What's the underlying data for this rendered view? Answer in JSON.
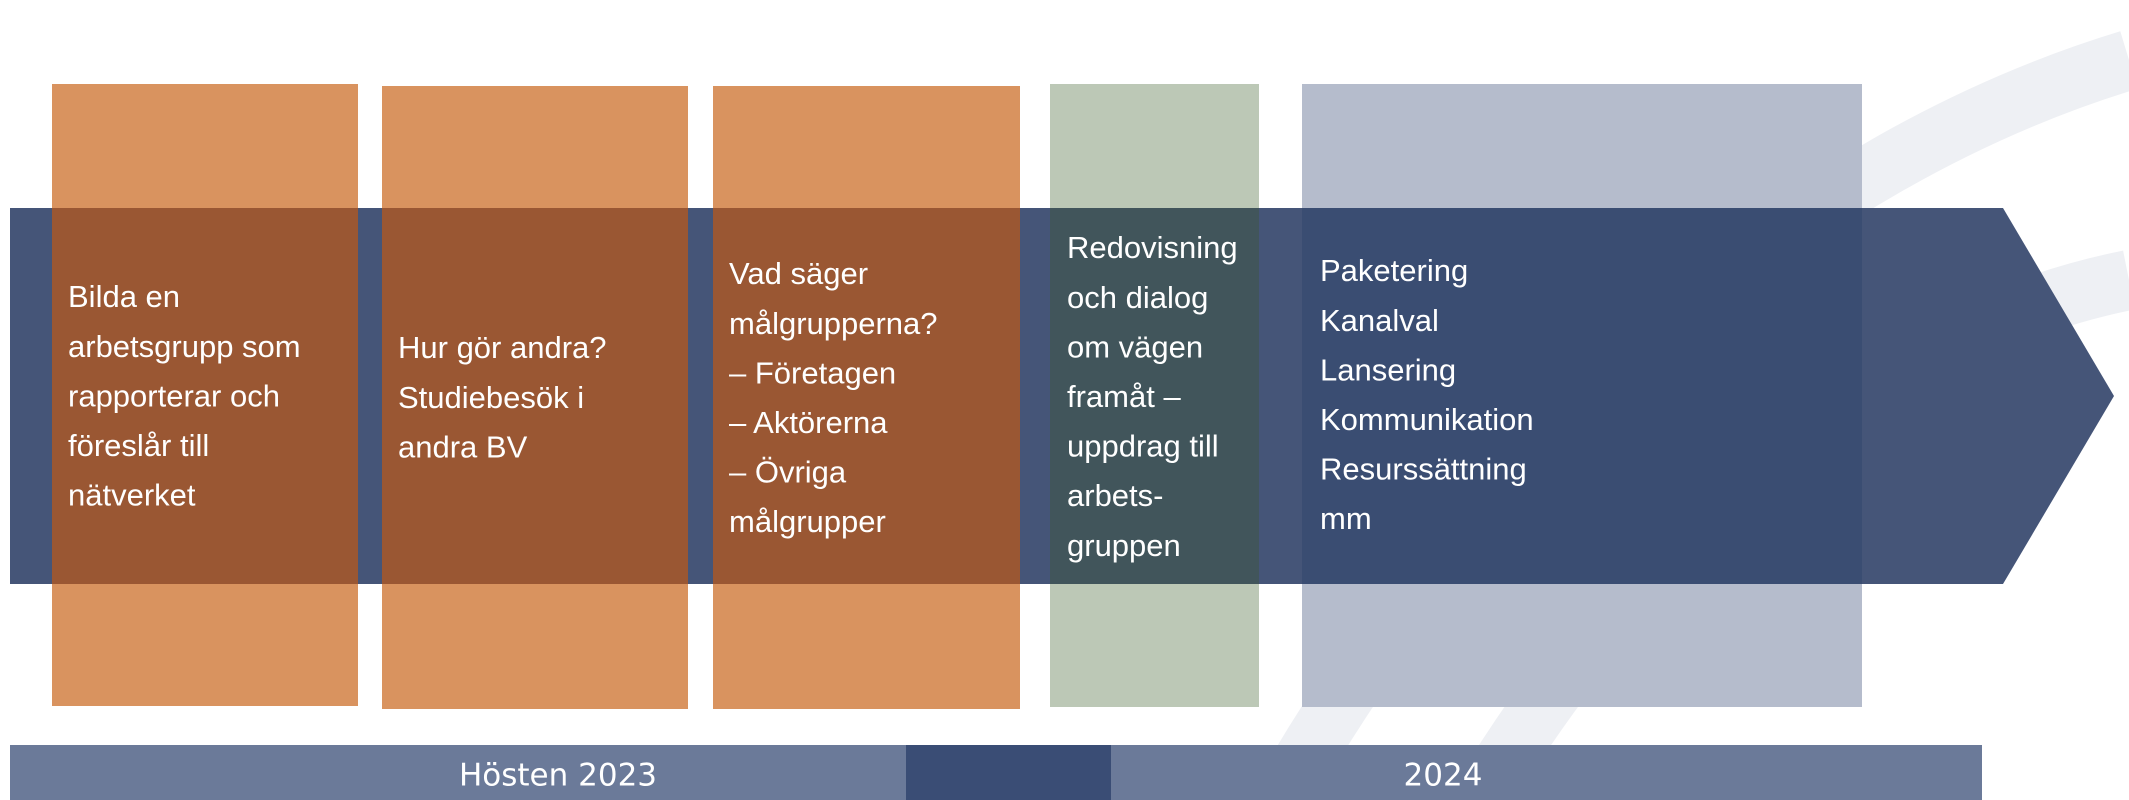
{
  "steps": [
    {
      "lines": [
        "Bilda en",
        "arbetsgrupp som",
        "rapporterar och",
        "föreslår till",
        "nätverket"
      ]
    },
    {
      "lines": [
        "Hur gör andra?",
        "Studiebesök i",
        "andra BV"
      ]
    },
    {
      "lines": [
        "Vad säger",
        "målgrupperna?",
        "– Företagen",
        "– Aktörerna",
        "–  Övriga",
        "målgrupper"
      ]
    },
    {
      "lines": [
        "Redovisning",
        "och dialog",
        "om vägen",
        "framåt –",
        "uppdrag till",
        "arbets-",
        "gruppen"
      ]
    },
    {
      "lines": [
        "Paketering",
        "Kanalval",
        "Lansering",
        "Kommunikation",
        "Resurssättning",
        "mm"
      ]
    }
  ],
  "timeline": [
    {
      "label": "Hösten 2023"
    },
    {
      "label": "2024"
    }
  ]
}
